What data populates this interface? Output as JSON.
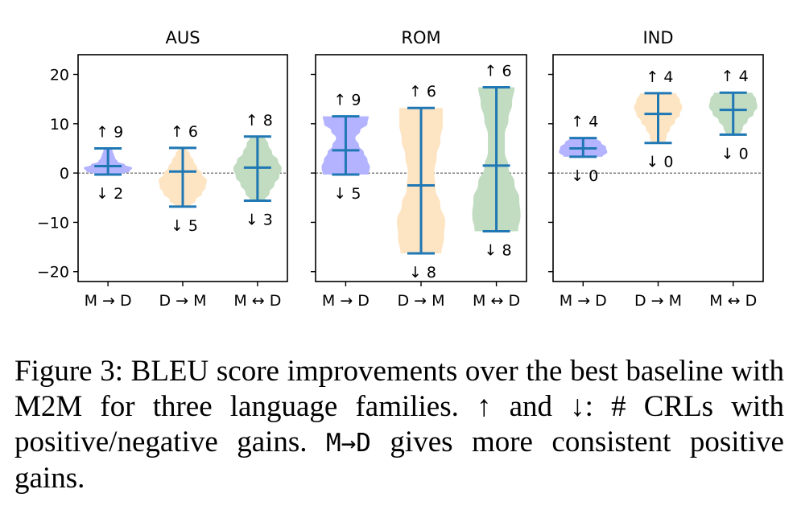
{
  "chart_data": {
    "type": "violin",
    "ylim": [
      -22,
      24
    ],
    "yticks": [
      20,
      10,
      0,
      -10,
      -20
    ],
    "ytick_labels": [
      "20",
      "10",
      "0",
      "−10",
      "−20"
    ],
    "categories": [
      "M → D",
      "D → M",
      "M ↔ D"
    ],
    "reference_line": 0,
    "series_colors": [
      "#b3b3ff",
      "#fde5c4",
      "#c1dcc1"
    ],
    "stat_line_color": "#1f77b4",
    "panels": [
      {
        "title": "AUS",
        "violins": [
          {
            "category": "M → D",
            "max": 5.0,
            "median": 1.4,
            "min": -0.3,
            "up_count": "↑ 9",
            "down_count": "↓ 2",
            "density": [
              0.15,
              0.2,
              0.25,
              0.3,
              0.4,
              0.7,
              1.0,
              0.9,
              0.5
            ]
          },
          {
            "category": "D → M",
            "max": 5.1,
            "median": 0.3,
            "min": -6.8,
            "up_count": "↑ 6",
            "down_count": "↓ 5",
            "density": [
              0.15,
              0.3,
              0.45,
              0.6,
              0.8,
              1.0,
              0.95,
              0.8,
              0.55,
              0.3
            ]
          },
          {
            "category": "M ↔ D",
            "max": 7.4,
            "median": 1.1,
            "min": -5.6,
            "up_count": "↑ 8",
            "down_count": "↓ 3",
            "density": [
              0.3,
              0.45,
              0.6,
              0.85,
              1.0,
              0.9,
              0.7,
              0.5,
              0.3
            ]
          }
        ]
      },
      {
        "title": "ROM",
        "violins": [
          {
            "category": "M → D",
            "max": 11.5,
            "median": 4.6,
            "min": -0.3,
            "up_count": "↑ 9",
            "down_count": "↓ 5",
            "density": [
              0.95,
              0.9,
              0.6,
              0.4,
              0.55,
              0.75,
              0.9,
              1.0,
              0.95
            ]
          },
          {
            "category": "D → M",
            "max": 13.2,
            "median": -2.5,
            "min": -16.3,
            "up_count": "↑ 6",
            "down_count": "↓ 8",
            "density": [
              0.9,
              0.9,
              0.8,
              0.65,
              0.55,
              0.6,
              0.8,
              1.0,
              0.95,
              0.85
            ]
          },
          {
            "category": "M ↔ D",
            "max": 17.4,
            "median": 1.5,
            "min": -11.8,
            "up_count": "↑ 6",
            "down_count": "↓ 8",
            "density": [
              0.75,
              0.65,
              0.5,
              0.35,
              0.35,
              0.5,
              0.75,
              0.95,
              1.0,
              0.9
            ]
          }
        ]
      },
      {
        "title": "IND",
        "violins": [
          {
            "category": "M → D",
            "max": 7.1,
            "median": 5.0,
            "min": 3.3,
            "up_count": "↑ 4",
            "down_count": "↓ 0",
            "density": [
              0.55,
              0.75,
              0.95,
              1.0,
              0.8
            ]
          },
          {
            "category": "D → M",
            "max": 16.2,
            "median": 12.0,
            "min": 6.1,
            "up_count": "↑ 4",
            "down_count": "↓ 0",
            "density": [
              0.75,
              0.9,
              1.0,
              0.9,
              0.7,
              0.5,
              0.35,
              0.3
            ]
          },
          {
            "category": "M ↔ D",
            "max": 16.3,
            "median": 12.8,
            "min": 7.8,
            "up_count": "↑ 4",
            "down_count": "↓ 0",
            "density": [
              0.8,
              0.95,
              1.0,
              0.85,
              0.6,
              0.4,
              0.3
            ]
          }
        ]
      }
    ]
  },
  "caption": {
    "part1": "Figure 3: BLEU score improvements over the best baseline with M2M for three language families. ↑ and ↓: # CRLs with positive/negative gains. ",
    "mono": "M→D",
    "part2": " gives more consistent positive gains."
  }
}
